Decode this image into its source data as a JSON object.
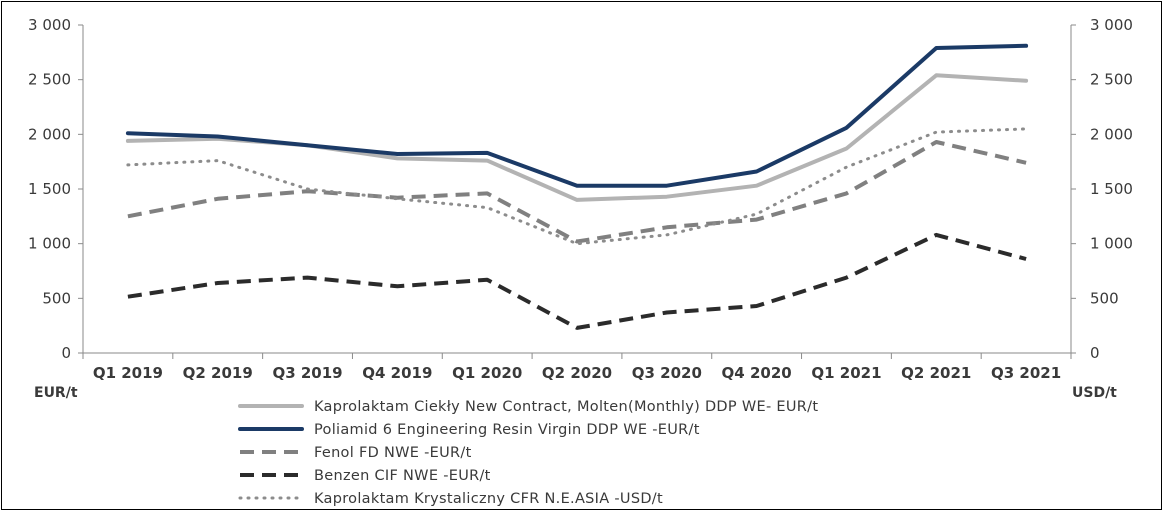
{
  "chart_data": {
    "type": "line",
    "categories": [
      "Q1 2019",
      "Q2 2019",
      "Q3 2019",
      "Q4 2019",
      "Q1 2020",
      "Q2 2020",
      "Q3 2020",
      "Q4 2020",
      "Q1 2021",
      "Q2 2021",
      "Q3 2021"
    ],
    "y_left": {
      "label": "EUR/t",
      "range": [
        0,
        3000
      ],
      "ticks": [
        "0",
        "500",
        "1 000",
        "1 500",
        "2 000",
        "2 500",
        "3 000"
      ]
    },
    "y_right": {
      "label": "USD/t",
      "range": [
        0,
        3000
      ],
      "ticks": [
        "0",
        "500",
        "1 000",
        "1 500",
        "2 000",
        "2 500",
        "3 000"
      ]
    },
    "grid": false,
    "legend_position": "bottom",
    "series": [
      {
        "name": "Kaprolaktam Ciekły New Contract, Molten(Monthly) DDP WE- EUR/t",
        "axis": "left",
        "color": "#b3b3b3",
        "style": "solid",
        "values": [
          1940,
          1960,
          1900,
          1780,
          1760,
          1400,
          1430,
          1530,
          1870,
          2540,
          2490
        ]
      },
      {
        "name": "Poliamid 6 Engineering Resin Virgin DDP WE -EUR/t",
        "axis": "left",
        "color": "#1b3a66",
        "style": "solid",
        "values": [
          2010,
          1980,
          1900,
          1820,
          1830,
          1530,
          1530,
          1660,
          2060,
          2790,
          2810
        ]
      },
      {
        "name": "Fenol FD NWE -EUR/t",
        "axis": "left",
        "color": "#808080",
        "style": "dash",
        "values": [
          1250,
          1410,
          1480,
          1420,
          1460,
          1020,
          1150,
          1220,
          1460,
          1930,
          1740
        ]
      },
      {
        "name": "Benzen CIF NWE -EUR/t",
        "axis": "left",
        "color": "#2b2b2b",
        "style": "dash",
        "values": [
          515,
          640,
          690,
          610,
          670,
          230,
          370,
          430,
          690,
          1080,
          860
        ]
      },
      {
        "name": "Kaprolaktam Krystaliczny CFR N.E.ASIA -USD/t",
        "axis": "right",
        "color": "#8c8c8c",
        "style": "dot",
        "values": [
          1720,
          1760,
          1500,
          1410,
          1330,
          1000,
          1080,
          1270,
          1700,
          2020,
          2050
        ]
      }
    ]
  }
}
